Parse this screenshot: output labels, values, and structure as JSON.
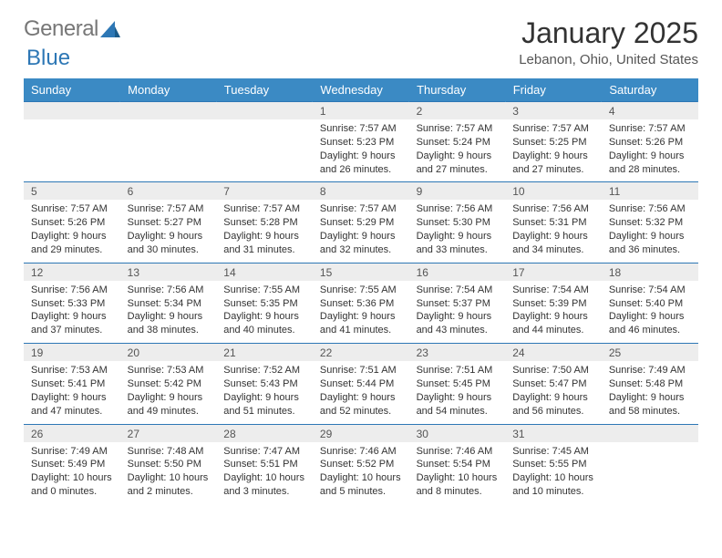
{
  "logo": {
    "text1": "General",
    "text2": "Blue"
  },
  "title": "January 2025",
  "location": "Lebanon, Ohio, United States",
  "header_color": "#3b8ac4",
  "daterow_color": "#ededed",
  "border_color": "#2d77b5",
  "font_family": "Arial",
  "day_fontsize": 13,
  "cell_fontsize": 11,
  "days": [
    "Sunday",
    "Monday",
    "Tuesday",
    "Wednesday",
    "Thursday",
    "Friday",
    "Saturday"
  ],
  "weeks": [
    {
      "dates": [
        "",
        "",
        "",
        "1",
        "2",
        "3",
        "4"
      ],
      "cells": [
        null,
        null,
        null,
        {
          "sunrise": "7:57 AM",
          "sunset": "5:23 PM",
          "dl_h": 9,
          "dl_m": 26
        },
        {
          "sunrise": "7:57 AM",
          "sunset": "5:24 PM",
          "dl_h": 9,
          "dl_m": 27
        },
        {
          "sunrise": "7:57 AM",
          "sunset": "5:25 PM",
          "dl_h": 9,
          "dl_m": 27
        },
        {
          "sunrise": "7:57 AM",
          "sunset": "5:26 PM",
          "dl_h": 9,
          "dl_m": 28
        }
      ]
    },
    {
      "dates": [
        "5",
        "6",
        "7",
        "8",
        "9",
        "10",
        "11"
      ],
      "cells": [
        {
          "sunrise": "7:57 AM",
          "sunset": "5:26 PM",
          "dl_h": 9,
          "dl_m": 29
        },
        {
          "sunrise": "7:57 AM",
          "sunset": "5:27 PM",
          "dl_h": 9,
          "dl_m": 30
        },
        {
          "sunrise": "7:57 AM",
          "sunset": "5:28 PM",
          "dl_h": 9,
          "dl_m": 31
        },
        {
          "sunrise": "7:57 AM",
          "sunset": "5:29 PM",
          "dl_h": 9,
          "dl_m": 32
        },
        {
          "sunrise": "7:56 AM",
          "sunset": "5:30 PM",
          "dl_h": 9,
          "dl_m": 33
        },
        {
          "sunrise": "7:56 AM",
          "sunset": "5:31 PM",
          "dl_h": 9,
          "dl_m": 34
        },
        {
          "sunrise": "7:56 AM",
          "sunset": "5:32 PM",
          "dl_h": 9,
          "dl_m": 36
        }
      ]
    },
    {
      "dates": [
        "12",
        "13",
        "14",
        "15",
        "16",
        "17",
        "18"
      ],
      "cells": [
        {
          "sunrise": "7:56 AM",
          "sunset": "5:33 PM",
          "dl_h": 9,
          "dl_m": 37
        },
        {
          "sunrise": "7:56 AM",
          "sunset": "5:34 PM",
          "dl_h": 9,
          "dl_m": 38
        },
        {
          "sunrise": "7:55 AM",
          "sunset": "5:35 PM",
          "dl_h": 9,
          "dl_m": 40
        },
        {
          "sunrise": "7:55 AM",
          "sunset": "5:36 PM",
          "dl_h": 9,
          "dl_m": 41
        },
        {
          "sunrise": "7:54 AM",
          "sunset": "5:37 PM",
          "dl_h": 9,
          "dl_m": 43
        },
        {
          "sunrise": "7:54 AM",
          "sunset": "5:39 PM",
          "dl_h": 9,
          "dl_m": 44
        },
        {
          "sunrise": "7:54 AM",
          "sunset": "5:40 PM",
          "dl_h": 9,
          "dl_m": 46
        }
      ]
    },
    {
      "dates": [
        "19",
        "20",
        "21",
        "22",
        "23",
        "24",
        "25"
      ],
      "cells": [
        {
          "sunrise": "7:53 AM",
          "sunset": "5:41 PM",
          "dl_h": 9,
          "dl_m": 47
        },
        {
          "sunrise": "7:53 AM",
          "sunset": "5:42 PM",
          "dl_h": 9,
          "dl_m": 49
        },
        {
          "sunrise": "7:52 AM",
          "sunset": "5:43 PM",
          "dl_h": 9,
          "dl_m": 51
        },
        {
          "sunrise": "7:51 AM",
          "sunset": "5:44 PM",
          "dl_h": 9,
          "dl_m": 52
        },
        {
          "sunrise": "7:51 AM",
          "sunset": "5:45 PM",
          "dl_h": 9,
          "dl_m": 54
        },
        {
          "sunrise": "7:50 AM",
          "sunset": "5:47 PM",
          "dl_h": 9,
          "dl_m": 56
        },
        {
          "sunrise": "7:49 AM",
          "sunset": "5:48 PM",
          "dl_h": 9,
          "dl_m": 58
        }
      ]
    },
    {
      "dates": [
        "26",
        "27",
        "28",
        "29",
        "30",
        "31",
        ""
      ],
      "cells": [
        {
          "sunrise": "7:49 AM",
          "sunset": "5:49 PM",
          "dl_h": 10,
          "dl_m": 0
        },
        {
          "sunrise": "7:48 AM",
          "sunset": "5:50 PM",
          "dl_h": 10,
          "dl_m": 2
        },
        {
          "sunrise": "7:47 AM",
          "sunset": "5:51 PM",
          "dl_h": 10,
          "dl_m": 3
        },
        {
          "sunrise": "7:46 AM",
          "sunset": "5:52 PM",
          "dl_h": 10,
          "dl_m": 5
        },
        {
          "sunrise": "7:46 AM",
          "sunset": "5:54 PM",
          "dl_h": 10,
          "dl_m": 8
        },
        {
          "sunrise": "7:45 AM",
          "sunset": "5:55 PM",
          "dl_h": 10,
          "dl_m": 10
        },
        null
      ]
    }
  ]
}
